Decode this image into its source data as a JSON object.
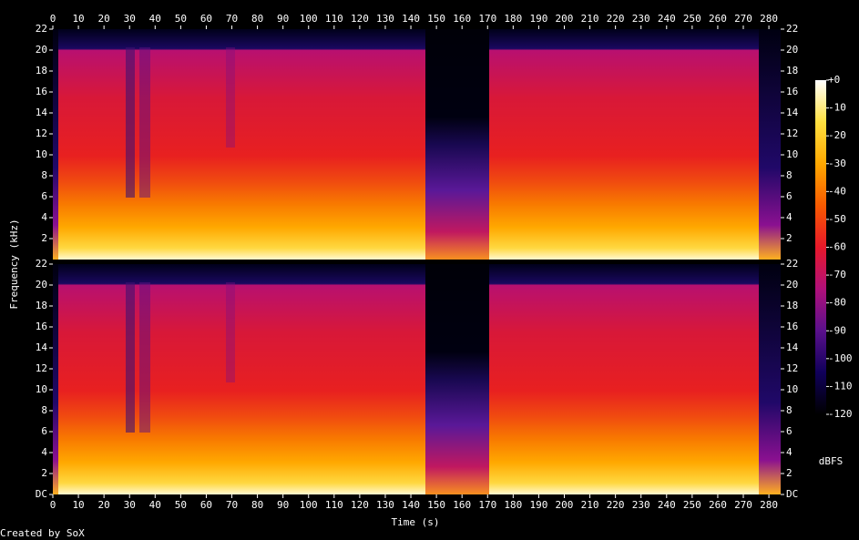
{
  "chart_data": {
    "type": "spectrogram",
    "x_label": "Time (s)",
    "y_label": "Frequency (kHz)",
    "xlim": [
      0,
      284.6
    ],
    "xticks": [
      0,
      10,
      20,
      30,
      40,
      50,
      60,
      70,
      80,
      90,
      100,
      110,
      120,
      130,
      140,
      150,
      160,
      170,
      180,
      190,
      200,
      210,
      220,
      230,
      240,
      250,
      260,
      270,
      280
    ],
    "ylim": [
      0,
      22
    ],
    "yticks": [
      {
        "value": 0,
        "label": "DC"
      },
      2,
      4,
      6,
      8,
      10,
      12,
      14,
      16,
      18,
      20,
      22
    ],
    "colorbar": {
      "label": "dBFS",
      "lim": [
        -120,
        0
      ],
      "ticks": [
        {
          "value": 0,
          "label": "+0"
        },
        -10,
        -20,
        -30,
        -40,
        -50,
        -60,
        -70,
        -80,
        -90,
        -100,
        -110,
        -120
      ],
      "colormap": [
        "#000000",
        "#10005a",
        "#5a108c",
        "#b0107a",
        "#e8182a",
        "#f85a00",
        "#ffa800",
        "#ffe040",
        "#ffffff"
      ]
    },
    "footer": "Created by SoX"
  }
}
